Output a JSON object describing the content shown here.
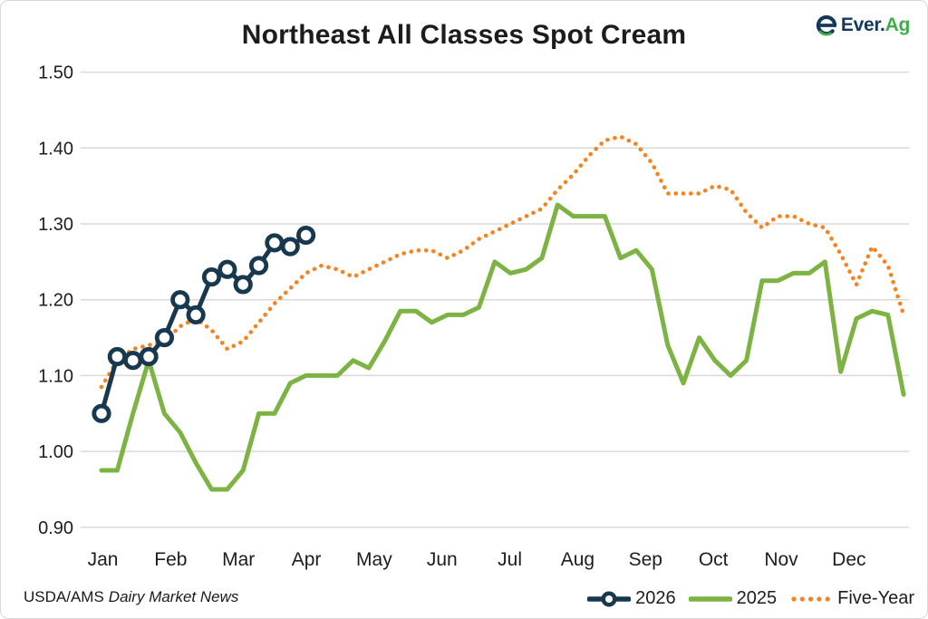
{
  "header": {
    "title": "Northeast All Classes Spot Cream",
    "logo": {
      "brand_primary": "Ever.",
      "brand_secondary": "Ag"
    }
  },
  "footer": {
    "source_prefix": "USDA/AMS",
    "source_publication": "Dairy Market News"
  },
  "colors": {
    "navy": "#17384f",
    "green": "#7cb342",
    "orange": "#f5831f",
    "gridline": "#d9d9d9",
    "axis_text": "#1d1d1d",
    "logo_navy": "#14395b",
    "logo_green": "#3dae49"
  },
  "chart_data": {
    "type": "line",
    "title": "Northeast All Classes Spot Cream",
    "x_axis": {
      "unit": "weekly",
      "months": [
        "Jan",
        "Feb",
        "Mar",
        "Apr",
        "May",
        "Jun",
        "Jul",
        "Aug",
        "Sep",
        "Oct",
        "Nov",
        "Dec"
      ]
    },
    "y_axis": {
      "min": 0.9,
      "max": 1.5,
      "tick_step": 0.1,
      "tick_labels": [
        "1.50",
        "1.40",
        "1.30",
        "1.20",
        "1.10",
        "1.00",
        "0.90"
      ]
    },
    "grid": "horizontal",
    "legend_position": "bottom-right",
    "series": [
      {
        "name": "2026",
        "style": "solid_with_circle_markers",
        "color": "#17384f",
        "start_week": 1,
        "values": [
          1.05,
          1.125,
          1.12,
          1.125,
          1.15,
          1.2,
          1.18,
          1.23,
          1.24,
          1.22,
          1.245,
          1.275,
          1.27,
          1.285
        ]
      },
      {
        "name": "2025",
        "style": "solid",
        "color": "#7cb342",
        "start_week": 1,
        "values": [
          0.975,
          0.975,
          1.05,
          1.12,
          1.05,
          1.025,
          0.985,
          0.95,
          0.95,
          0.975,
          1.05,
          1.05,
          1.09,
          1.1,
          1.1,
          1.1,
          1.12,
          1.11,
          1.145,
          1.185,
          1.185,
          1.17,
          1.18,
          1.18,
          1.19,
          1.25,
          1.235,
          1.24,
          1.255,
          1.325,
          1.31,
          1.31,
          1.31,
          1.255,
          1.265,
          1.24,
          1.14,
          1.09,
          1.15,
          1.12,
          1.1,
          1.12,
          1.225,
          1.225,
          1.235,
          1.235,
          1.25,
          1.105,
          1.175,
          1.185,
          1.18,
          1.075
        ]
      },
      {
        "name": "Five-Year",
        "style": "dotted",
        "color": "#f5831f",
        "start_week": 1,
        "values": [
          1.085,
          1.12,
          1.135,
          1.14,
          1.145,
          1.165,
          1.175,
          1.16,
          1.135,
          1.145,
          1.17,
          1.195,
          1.215,
          1.235,
          1.245,
          1.24,
          1.23,
          1.24,
          1.25,
          1.26,
          1.265,
          1.265,
          1.255,
          1.265,
          1.28,
          1.29,
          1.3,
          1.31,
          1.32,
          1.345,
          1.365,
          1.39,
          1.41,
          1.415,
          1.405,
          1.38,
          1.34,
          1.34,
          1.34,
          1.35,
          1.345,
          1.315,
          1.295,
          1.31,
          1.31,
          1.3,
          1.295,
          1.26,
          1.22,
          1.27,
          1.245,
          1.18
        ]
      }
    ]
  }
}
